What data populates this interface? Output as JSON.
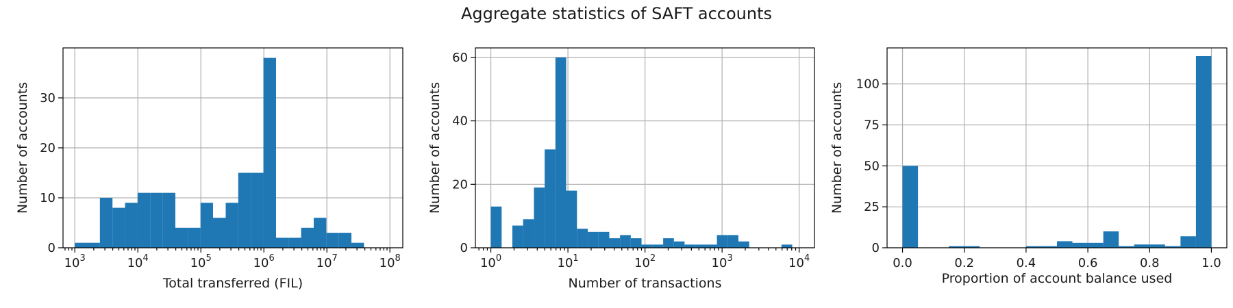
{
  "figure": {
    "title": "Aggregate statistics of SAFT accounts"
  },
  "colors": {
    "bar": "#1f77b4",
    "grid": "#b0b0b0",
    "axis": "#000000",
    "background": "#ffffff"
  },
  "chart_data": [
    {
      "type": "bar",
      "xscale": "log",
      "xlabel": "Total transferred (FIL)",
      "ylabel": "Number of accounts",
      "xlim": [
        650,
        160000000
      ],
      "ylim": [
        0,
        40
      ],
      "grid": true,
      "xticks": [
        {
          "base": "10",
          "exp": "3",
          "value": 1000
        },
        {
          "base": "10",
          "exp": "4",
          "value": 10000
        },
        {
          "base": "10",
          "exp": "5",
          "value": 100000
        },
        {
          "base": "10",
          "exp": "6",
          "value": 1000000
        },
        {
          "base": "10",
          "exp": "7",
          "value": 10000000
        },
        {
          "base": "10",
          "exp": "8",
          "value": 100000000
        }
      ],
      "yticks": [
        0,
        10,
        20,
        30
      ],
      "bins": [
        {
          "x0": 1000,
          "x1": 1580,
          "count": 1
        },
        {
          "x0": 1580,
          "x1": 2500,
          "count": 1
        },
        {
          "x0": 2500,
          "x1": 3960,
          "count": 10
        },
        {
          "x0": 3960,
          "x1": 6270,
          "count": 8
        },
        {
          "x0": 6270,
          "x1": 9930,
          "count": 9
        },
        {
          "x0": 9930,
          "x1": 15700,
          "count": 11
        },
        {
          "x0": 15700,
          "x1": 24900,
          "count": 11
        },
        {
          "x0": 24900,
          "x1": 39400,
          "count": 11
        },
        {
          "x0": 39400,
          "x1": 62400,
          "count": 4
        },
        {
          "x0": 62400,
          "x1": 98800,
          "count": 4
        },
        {
          "x0": 98800,
          "x1": 156000,
          "count": 9
        },
        {
          "x0": 156000,
          "x1": 248000,
          "count": 6
        },
        {
          "x0": 248000,
          "x1": 392000,
          "count": 9
        },
        {
          "x0": 392000,
          "x1": 621000,
          "count": 15
        },
        {
          "x0": 621000,
          "x1": 984000,
          "count": 15
        },
        {
          "x0": 984000,
          "x1": 1560000,
          "count": 38
        },
        {
          "x0": 1560000,
          "x1": 2470000,
          "count": 2
        },
        {
          "x0": 2470000,
          "x1": 3900000,
          "count": 2
        },
        {
          "x0": 3900000,
          "x1": 6180000,
          "count": 4
        },
        {
          "x0": 6180000,
          "x1": 9790000,
          "count": 6
        },
        {
          "x0": 9790000,
          "x1": 15500000,
          "count": 3
        },
        {
          "x0": 15500000,
          "x1": 24500000,
          "count": 3
        },
        {
          "x0": 24500000,
          "x1": 38800000,
          "count": 1
        }
      ]
    },
    {
      "type": "bar",
      "xscale": "log",
      "xlabel": "Number of transactions",
      "ylabel": "Number of accounts",
      "xlim": [
        0.63,
        15800
      ],
      "ylim": [
        0,
        63
      ],
      "grid": true,
      "xticks": [
        {
          "base": "10",
          "exp": "0",
          "value": 1
        },
        {
          "base": "10",
          "exp": "1",
          "value": 10
        },
        {
          "base": "10",
          "exp": "2",
          "value": 100
        },
        {
          "base": "10",
          "exp": "3",
          "value": 1000
        },
        {
          "base": "10",
          "exp": "4",
          "value": 10000
        }
      ],
      "yticks": [
        0,
        20,
        40,
        60
      ],
      "bins": [
        {
          "x0": 1.0,
          "x1": 1.38,
          "count": 13
        },
        {
          "x0": 1.38,
          "x1": 1.9,
          "count": 0
        },
        {
          "x0": 1.9,
          "x1": 2.62,
          "count": 7
        },
        {
          "x0": 2.62,
          "x1": 3.62,
          "count": 9
        },
        {
          "x0": 3.62,
          "x1": 4.99,
          "count": 19
        },
        {
          "x0": 4.99,
          "x1": 6.88,
          "count": 31
        },
        {
          "x0": 6.88,
          "x1": 9.49,
          "count": 60
        },
        {
          "x0": 9.49,
          "x1": 13.1,
          "count": 18
        },
        {
          "x0": 13.1,
          "x1": 18.1,
          "count": 6
        },
        {
          "x0": 18.1,
          "x1": 24.9,
          "count": 5
        },
        {
          "x0": 24.9,
          "x1": 34.4,
          "count": 5
        },
        {
          "x0": 34.4,
          "x1": 47.4,
          "count": 3
        },
        {
          "x0": 47.4,
          "x1": 65.4,
          "count": 4
        },
        {
          "x0": 65.4,
          "x1": 90.2,
          "count": 3
        },
        {
          "x0": 90.2,
          "x1": 124.0,
          "count": 1
        },
        {
          "x0": 124.0,
          "x1": 172.0,
          "count": 1
        },
        {
          "x0": 172.0,
          "x1": 237.0,
          "count": 3
        },
        {
          "x0": 237.0,
          "x1": 326.0,
          "count": 2
        },
        {
          "x0": 326.0,
          "x1": 450.0,
          "count": 1
        },
        {
          "x0": 450.0,
          "x1": 621.0,
          "count": 1
        },
        {
          "x0": 621.0,
          "x1": 857.0,
          "count": 1
        },
        {
          "x0": 857.0,
          "x1": 1180.0,
          "count": 4
        },
        {
          "x0": 1180.0,
          "x1": 1630.0,
          "count": 4
        },
        {
          "x0": 1630.0,
          "x1": 2250.0,
          "count": 2
        },
        {
          "x0": 2250.0,
          "x1": 3100.0,
          "count": 0
        },
        {
          "x0": 3100.0,
          "x1": 4280.0,
          "count": 0
        },
        {
          "x0": 4280.0,
          "x1": 5900.0,
          "count": 0
        },
        {
          "x0": 5900.0,
          "x1": 8130.0,
          "count": 1
        }
      ]
    },
    {
      "type": "bar",
      "xscale": "linear",
      "xlabel": "Proportion of account balance used",
      "ylabel": "Number of accounts",
      "xlim": [
        -0.05,
        1.05
      ],
      "ylim": [
        0,
        122
      ],
      "grid": true,
      "xticks": [
        {
          "label": "0.0",
          "value": 0.0
        },
        {
          "label": "0.2",
          "value": 0.2
        },
        {
          "label": "0.4",
          "value": 0.4
        },
        {
          "label": "0.6",
          "value": 0.6
        },
        {
          "label": "0.8",
          "value": 0.8
        },
        {
          "label": "1.0",
          "value": 1.0
        }
      ],
      "yticks": [
        0,
        25,
        50,
        75,
        100
      ],
      "bins": [
        {
          "x0": 0.0,
          "x1": 0.05,
          "count": 50
        },
        {
          "x0": 0.05,
          "x1": 0.1,
          "count": 0
        },
        {
          "x0": 0.1,
          "x1": 0.15,
          "count": 0
        },
        {
          "x0": 0.15,
          "x1": 0.2,
          "count": 1
        },
        {
          "x0": 0.2,
          "x1": 0.25,
          "count": 1
        },
        {
          "x0": 0.25,
          "x1": 0.3,
          "count": 0
        },
        {
          "x0": 0.3,
          "x1": 0.35,
          "count": 0
        },
        {
          "x0": 0.35,
          "x1": 0.4,
          "count": 0
        },
        {
          "x0": 0.4,
          "x1": 0.45,
          "count": 1
        },
        {
          "x0": 0.45,
          "x1": 0.5,
          "count": 1
        },
        {
          "x0": 0.5,
          "x1": 0.55,
          "count": 4
        },
        {
          "x0": 0.55,
          "x1": 0.6,
          "count": 3
        },
        {
          "x0": 0.6,
          "x1": 0.65,
          "count": 3
        },
        {
          "x0": 0.65,
          "x1": 0.7,
          "count": 10
        },
        {
          "x0": 0.7,
          "x1": 0.75,
          "count": 1
        },
        {
          "x0": 0.75,
          "x1": 0.8,
          "count": 2
        },
        {
          "x0": 0.8,
          "x1": 0.85,
          "count": 2
        },
        {
          "x0": 0.85,
          "x1": 0.9,
          "count": 1
        },
        {
          "x0": 0.9,
          "x1": 0.95,
          "count": 7
        },
        {
          "x0": 0.95,
          "x1": 1.0,
          "count": 117
        }
      ]
    }
  ]
}
